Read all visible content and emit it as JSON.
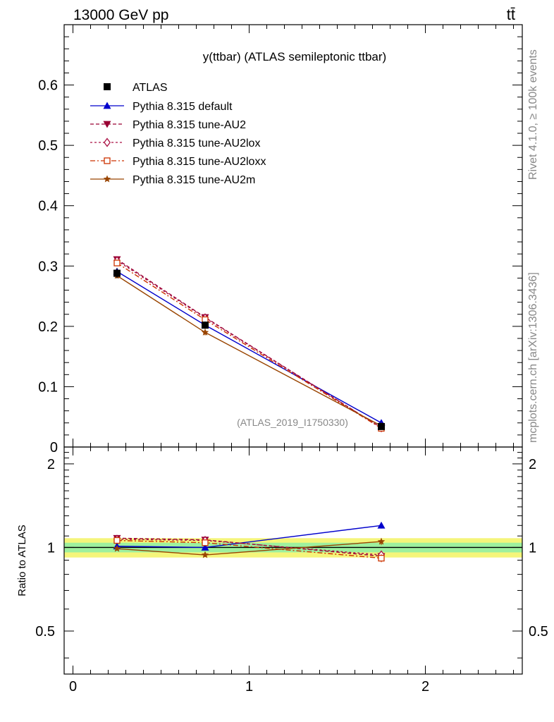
{
  "header": {
    "energy_label": "13000 GeV pp",
    "process_label": "tt̄"
  },
  "side": {
    "rivet_label": "Rivet 4.1.0, ≥ 100k events",
    "source_label": "mcplots.cern.ch [arXiv:1306.3436]"
  },
  "chart_data": {
    "type": "scatter",
    "title": "y(ttbar) (ATLAS semileptonic ttbar)",
    "analysis_label": "(ATLAS_2019_I1750330)",
    "xlabel": "",
    "ylabel": "",
    "ratio_ylabel": "Ratio to ATLAS",
    "xlim": [
      -0.05,
      2.55
    ],
    "ylim": [
      0,
      0.7
    ],
    "ratio_ylim": [
      0.35,
      2.3
    ],
    "x_ticks": [
      0,
      1,
      2
    ],
    "x_tick_labels": [
      "0",
      "1",
      "2"
    ],
    "y_ticks": [
      0,
      0.1,
      0.2,
      0.3,
      0.4,
      0.5,
      0.6
    ],
    "y_tick_labels": [
      "0",
      "0.1",
      "0.2",
      "0.3",
      "0.4",
      "0.5",
      "0.6"
    ],
    "ratio_ticks": [
      0.5,
      1,
      2
    ],
    "ratio_tick_labels": [
      "0.5",
      "1",
      "2"
    ],
    "x": [
      0.25,
      0.75,
      1.75
    ],
    "data": {
      "name": "ATLAS",
      "values": [
        0.288,
        0.202,
        0.034
      ],
      "errors": [
        0.008,
        0.006,
        0.0015
      ],
      "band_inner": 0.04,
      "band_outer": 0.08
    },
    "series": [
      {
        "name": "Pythia 8.315 default",
        "values": [
          0.291,
          0.202,
          0.04
        ],
        "ratio": [
          1.01,
          1.0,
          1.2
        ],
        "ratio_err": [
          0.015,
          0.015,
          0.03
        ],
        "color": "#0000cc",
        "dash": "",
        "marker": "triangle"
      },
      {
        "name": "Pythia 8.315 tune-AU2",
        "values": [
          0.311,
          0.215,
          0.032
        ],
        "ratio": [
          1.08,
          1.065,
          0.93
        ],
        "ratio_err": [
          0.015,
          0.015,
          0.03
        ],
        "color": "#990033",
        "dash": "5,3",
        "marker": "triangle-down"
      },
      {
        "name": "Pythia 8.315 tune-AU2lox",
        "values": [
          0.309,
          0.214,
          0.032
        ],
        "ratio": [
          1.07,
          1.06,
          0.94
        ],
        "ratio_err": [
          0.015,
          0.015,
          0.03
        ],
        "color": "#aa1144",
        "dash": "3,3",
        "marker": "diamond"
      },
      {
        "name": "Pythia 8.315 tune-AU2loxx",
        "values": [
          0.305,
          0.211,
          0.031
        ],
        "ratio": [
          1.06,
          1.04,
          0.915
        ],
        "ratio_err": [
          0.015,
          0.015,
          0.03
        ],
        "color": "#cc3300",
        "dash": "7,3,2,3",
        "marker": "square-open"
      },
      {
        "name": "Pythia 8.315 tune-AU2m",
        "values": [
          0.284,
          0.19,
          0.035
        ],
        "ratio": [
          0.99,
          0.94,
          1.05
        ],
        "ratio_err": [
          0.015,
          0.015,
          0.03
        ],
        "color": "#994400",
        "dash": "",
        "marker": "star"
      }
    ]
  }
}
